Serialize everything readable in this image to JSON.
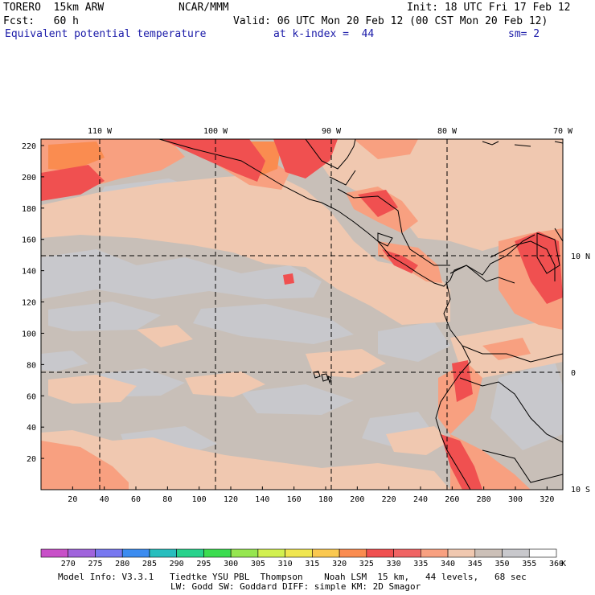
{
  "header": {
    "model": "TORERO  15km ARW",
    "org": "NCAR/MMM",
    "init": "Init: 18 UTC Fri 17 Feb 12",
    "fcst": "Fcst:   60 h",
    "valid": "Valid: 06 UTC Mon 20 Feb 12 (00 CST Mon 20 Feb 12)",
    "field": "Equivalent potential temperature",
    "level": "at k-index =  44",
    "smooth": "sm= 2"
  },
  "map": {
    "lon_labels": [
      "110 W",
      "100 W",
      "90 W",
      "80 W",
      "70 W"
    ],
    "lat_labels": [
      "10 N",
      "0",
      "10 S"
    ],
    "y_ticks": [
      "20",
      "40",
      "60",
      "80",
      "100",
      "120",
      "140",
      "160",
      "180",
      "200",
      "220"
    ],
    "x_ticks": [
      "20",
      "40",
      "60",
      "80",
      "100",
      "120",
      "140",
      "160",
      "180",
      "200",
      "220",
      "240",
      "260",
      "280",
      "300",
      "320"
    ]
  },
  "colorbar": {
    "unit": "K",
    "values": [
      "270",
      "275",
      "280",
      "285",
      "290",
      "295",
      "300",
      "305",
      "310",
      "315",
      "320",
      "325",
      "330",
      "335",
      "340",
      "345",
      "350",
      "355",
      "360"
    ],
    "colors": [
      "#c850c8",
      "#a064dc",
      "#7878f0",
      "#3c8cf0",
      "#28bebe",
      "#28d28c",
      "#3cdc50",
      "#96e650",
      "#d2f050",
      "#f0e650",
      "#fac850",
      "#fa8c50",
      "#f05050",
      "#f06464",
      "#f8a080",
      "#f0c8b0",
      "#ccc0b8",
      "#c8c8cc",
      "#ffffff"
    ]
  },
  "footer": {
    "line1": "Model Info: V3.3.1   Tiedtke YSU PBL  Thompson    Noah LSM  15 km,   44 levels,   68 sec",
    "line2": "LW: Godd SW: Goddard DIFF: simple KM: 2D Smagor"
  },
  "colors": {
    "background_gray": "#c8bfb8",
    "light_gray": "#c8c8cc",
    "peach": "#f0c8b0",
    "salmon": "#f8a080",
    "red": "#f05050",
    "orange": "#fa8c50"
  }
}
